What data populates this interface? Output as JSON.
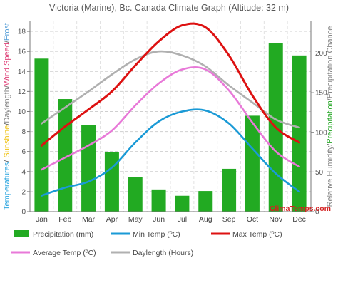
{
  "chart_data": {
    "type": "bar",
    "title": "Victoria (Marine), Bc. Canada Climate Graph (Altitude: 32 m)",
    "categories": [
      "Jan",
      "Feb",
      "Mar",
      "Apr",
      "May",
      "Jun",
      "Jul",
      "Aug",
      "Sep",
      "Oct",
      "Nov",
      "Dec"
    ],
    "left_axis": {
      "range": [
        0,
        19
      ],
      "ticks": [
        0,
        2,
        4,
        6,
        8,
        10,
        12,
        14,
        16,
        18
      ],
      "label_parts": [
        {
          "text": "Temperatures",
          "color": "#2fa7e0"
        },
        {
          "text": "/ ",
          "color": "#555555"
        },
        {
          "text": "Sunshine",
          "color": "#f0c419"
        },
        {
          "text": "/",
          "color": "#555555"
        },
        {
          "text": "Daylength",
          "color": "#888888"
        },
        {
          "text": "/",
          "color": "#555555"
        },
        {
          "text": "Wind Speed",
          "color": "#e0457b"
        },
        {
          "text": "/",
          "color": "#555555"
        },
        {
          "text": "Frost",
          "color": "#5aa0d8"
        }
      ]
    },
    "right_axis": {
      "range": [
        0,
        240
      ],
      "ticks": [
        0,
        50,
        100,
        150,
        200
      ],
      "label_parts": [
        {
          "text": "Relative Humidity",
          "color": "#888888"
        },
        {
          "text": "/",
          "color": "#555555"
        },
        {
          "text": "Precipitation",
          "color": "#2aa82a"
        },
        {
          "text": "/",
          "color": "#555555"
        },
        {
          "text": "Precipitation Chance",
          "color": "#888888"
        }
      ]
    },
    "grid": true,
    "series": [
      {
        "name": "Precipitation (mm)",
        "kind": "bar",
        "axis": "right",
        "color": "#22aa22",
        "values": [
          193,
          142,
          109,
          75,
          44,
          28,
          20,
          26,
          54,
          121,
          213,
          197
        ]
      },
      {
        "name": "Min Temp (ºC)",
        "kind": "line",
        "axis": "left",
        "color": "#1a9ad6",
        "values": [
          1.6,
          2.4,
          3.0,
          4.4,
          6.9,
          9.0,
          10.0,
          10.1,
          8.8,
          6.3,
          3.8,
          2.0
        ]
      },
      {
        "name": "Max Temp (ºC)",
        "kind": "line",
        "axis": "left",
        "color": "#dd1111",
        "values": [
          6.6,
          8.5,
          10.2,
          12.0,
          14.6,
          17.0,
          18.6,
          18.4,
          15.6,
          11.6,
          8.4,
          6.9
        ]
      },
      {
        "name": "Average Temp (ºC)",
        "kind": "line",
        "axis": "left",
        "color": "#e879d8",
        "values": [
          4.2,
          5.4,
          6.6,
          8.1,
          10.6,
          12.8,
          14.2,
          14.2,
          12.1,
          8.9,
          6.0,
          4.5
        ]
      },
      {
        "name": "Daylength (Hours)",
        "kind": "line",
        "axis": "left",
        "color": "#b0b0b0",
        "values": [
          8.8,
          10.4,
          12.0,
          13.7,
          15.2,
          16.0,
          15.6,
          14.5,
          12.6,
          10.9,
          9.2,
          8.4
        ]
      }
    ],
    "legend_position": "bottom",
    "watermark": "ClimaTemps.com"
  }
}
